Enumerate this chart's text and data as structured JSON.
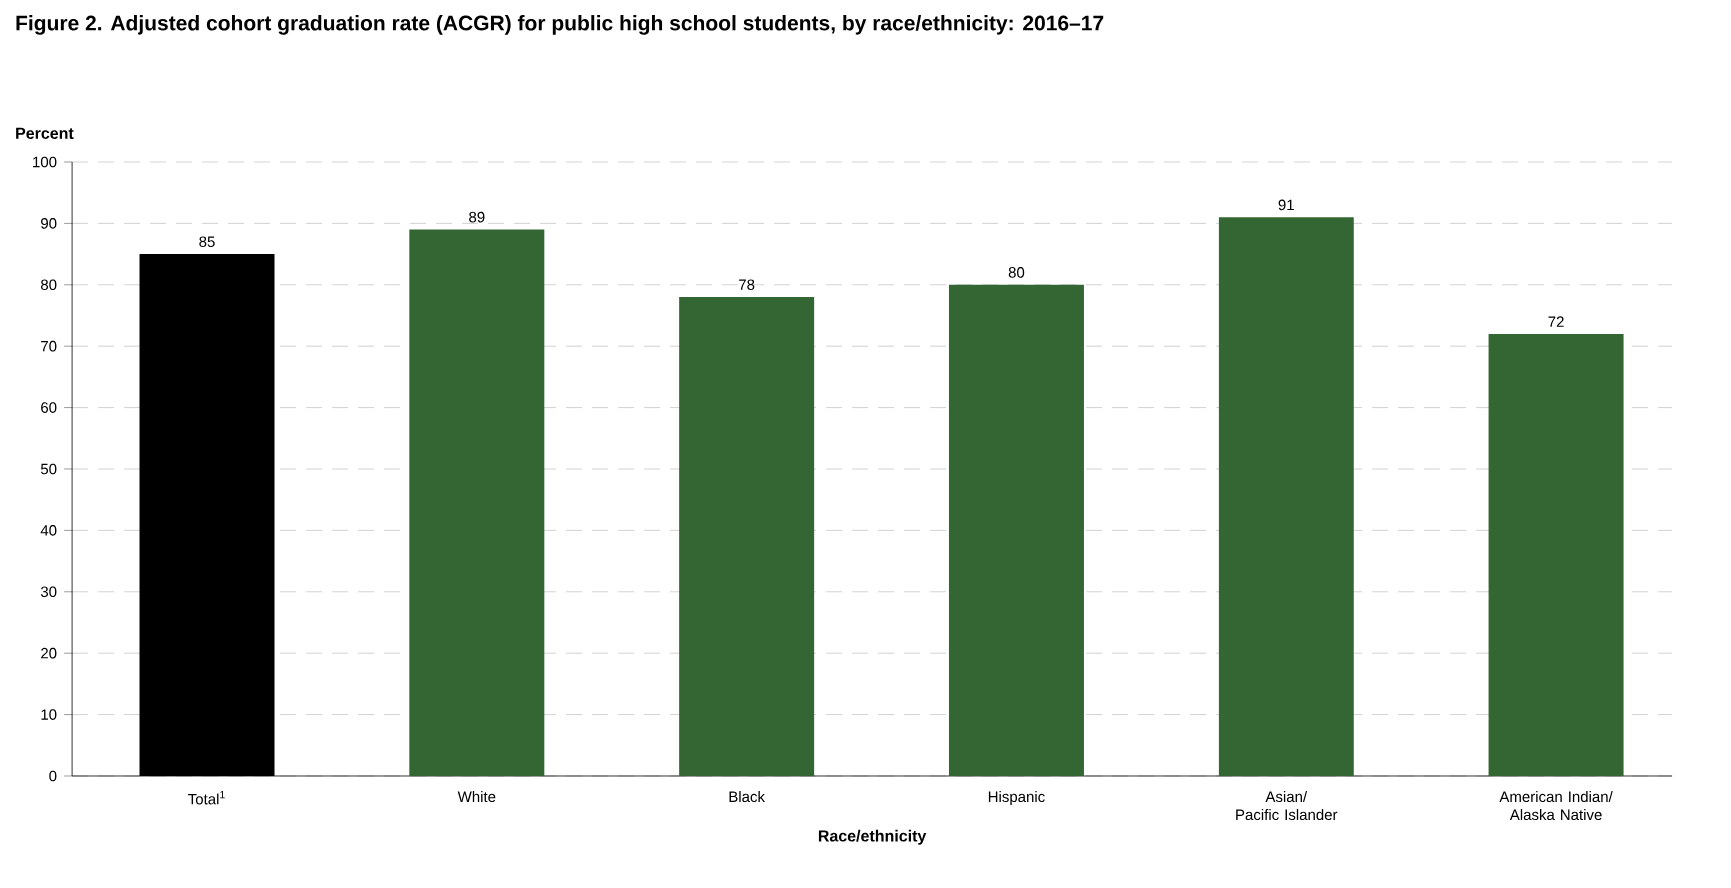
{
  "chart_data": {
    "type": "bar",
    "title": "Figure 2. Adjusted cohort graduation rate (ACGR) for public high school students, by race/ethnicity: 2016–17",
    "ylabel": "Percent",
    "xlabel": "Race/ethnicity",
    "categories": [
      "Total$^{1}$",
      "White",
      "Black",
      "Hispanic",
      "Asian/ Pacific Islander",
      "American Indian/ Alaska Native"
    ],
    "values": [
      85,
      89,
      78,
      80,
      91,
      72
    ],
    "colors": [
      "#000000",
      "#336633",
      "#336633",
      "#336633",
      "#336633",
      "#336633"
    ],
    "ylim": [
      0,
      100
    ],
    "yticks": [
      0,
      10,
      20,
      30,
      40,
      50,
      60,
      70,
      80,
      90,
      100
    ],
    "grid": "y",
    "data_labels": true
  }
}
